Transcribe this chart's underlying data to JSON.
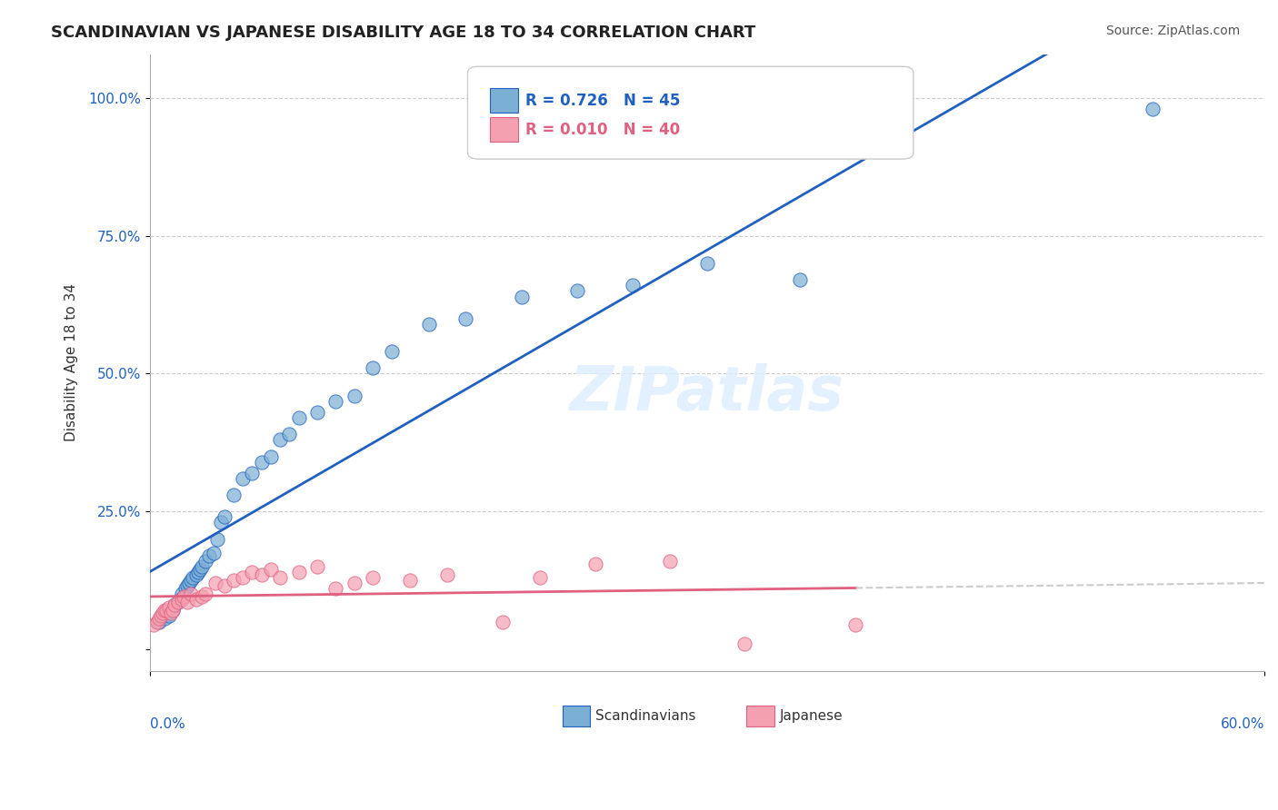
{
  "title": "SCANDINAVIAN VS JAPANESE DISABILITY AGE 18 TO 34 CORRELATION CHART",
  "source": "Source: ZipAtlas.com",
  "ylabel": "Disability Age 18 to 34",
  "yticks": [
    0.0,
    0.25,
    0.5,
    0.75,
    1.0
  ],
  "ytick_labels": [
    "",
    "25.0%",
    "50.0%",
    "75.0%",
    "100.0%"
  ],
  "xlim": [
    0.0,
    0.6
  ],
  "ylim": [
    -0.04,
    1.08
  ],
  "scand_color": "#7BAFD4",
  "japan_color": "#F4A0B0",
  "scand_line_color": "#2060C0",
  "japan_line_color": "#E06080",
  "watermark": "ZIPatlas",
  "legend_r_scand": "R = 0.726",
  "legend_n_scand": "N = 45",
  "legend_r_japan": "R = 0.010",
  "legend_n_japan": "N = 40",
  "scandinavian_x": [
    0.005,
    0.008,
    0.01,
    0.012,
    0.013,
    0.015,
    0.016,
    0.017,
    0.018,
    0.019,
    0.02,
    0.021,
    0.022,
    0.023,
    0.025,
    0.026,
    0.027,
    0.028,
    0.03,
    0.032,
    0.034,
    0.036,
    0.038,
    0.04,
    0.045,
    0.05,
    0.055,
    0.06,
    0.065,
    0.07,
    0.075,
    0.08,
    0.09,
    0.1,
    0.11,
    0.12,
    0.13,
    0.15,
    0.17,
    0.2,
    0.23,
    0.26,
    0.3,
    0.35,
    0.54
  ],
  "scandinavian_y": [
    0.05,
    0.055,
    0.06,
    0.07,
    0.08,
    0.085,
    0.09,
    0.1,
    0.095,
    0.11,
    0.115,
    0.12,
    0.125,
    0.13,
    0.135,
    0.14,
    0.145,
    0.15,
    0.16,
    0.17,
    0.175,
    0.2,
    0.23,
    0.24,
    0.28,
    0.31,
    0.32,
    0.34,
    0.35,
    0.38,
    0.39,
    0.42,
    0.43,
    0.45,
    0.46,
    0.51,
    0.54,
    0.59,
    0.6,
    0.64,
    0.65,
    0.66,
    0.7,
    0.67,
    0.98
  ],
  "japanese_x": [
    0.002,
    0.004,
    0.005,
    0.006,
    0.007,
    0.008,
    0.009,
    0.01,
    0.011,
    0.012,
    0.013,
    0.015,
    0.017,
    0.018,
    0.02,
    0.022,
    0.025,
    0.028,
    0.03,
    0.035,
    0.04,
    0.045,
    0.05,
    0.055,
    0.06,
    0.065,
    0.07,
    0.08,
    0.09,
    0.1,
    0.11,
    0.12,
    0.14,
    0.16,
    0.19,
    0.21,
    0.24,
    0.28,
    0.32,
    0.38
  ],
  "japanese_y": [
    0.045,
    0.05,
    0.055,
    0.06,
    0.065,
    0.07,
    0.07,
    0.075,
    0.065,
    0.07,
    0.08,
    0.085,
    0.09,
    0.095,
    0.085,
    0.1,
    0.09,
    0.095,
    0.1,
    0.12,
    0.115,
    0.125,
    0.13,
    0.14,
    0.135,
    0.145,
    0.13,
    0.14,
    0.15,
    0.11,
    0.12,
    0.13,
    0.125,
    0.135,
    0.05,
    0.13,
    0.155,
    0.16,
    0.01,
    0.045
  ]
}
